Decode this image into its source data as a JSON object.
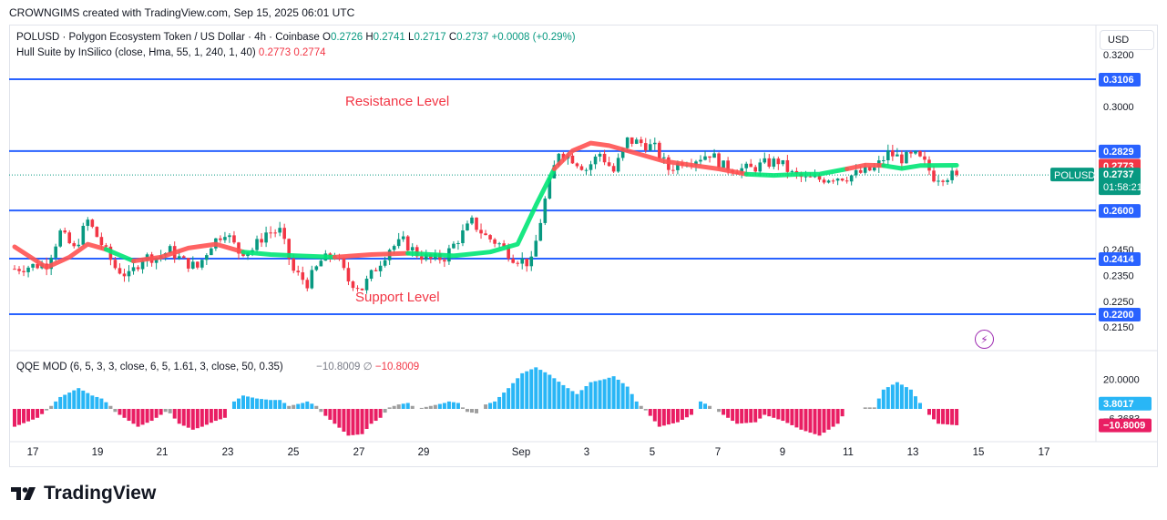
{
  "header": {
    "attribution": "CROWNGIMS created with TradingView.com, Sep 15, 2025 06:01 UTC"
  },
  "legend": {
    "symbol": "POLUSD · Polygon Ecosystem Token / US Dollar · 4h · Coinbase",
    "o_label": "O",
    "o_value": "0.2726",
    "h_label": "H",
    "h_value": "0.2741",
    "l_label": "L",
    "l_value": "0.2717",
    "c_label": "C",
    "c_value": "0.2737",
    "change": "+0.0008 (+0.29%)",
    "indicator": "Hull Suite by InSilico (close, Hma, 55, 1, 240, 1, 40)",
    "ind_v1": "0.2773",
    "ind_v2": "0.2774",
    "qqe_label": "QQE MOD (6, 5, 3, 3, close, 6, 5, 1.61, 3, close, 50, 0.35)",
    "qqe_v1": "−10.8009",
    "qqe_sym": "∅",
    "qqe_v2": "−10.8009"
  },
  "currency": "USD",
  "brand": "TradingView",
  "colors": {
    "up": "#089981",
    "down": "#f23645",
    "level_line": "#2962ff",
    "hull_up": "#00e676",
    "hull_down": "#ff5252",
    "qqe_up": "#29b6f6",
    "qqe_down": "#e91e63",
    "qqe_neutral": "#9e9e9e"
  },
  "chart_data": {
    "type": "candlestick",
    "symbol": "POLUSD",
    "timeframe": "4h",
    "price_axis_ticks": [
      "0.3200",
      "0.3000",
      "0.2450",
      "0.2350",
      "0.2250",
      "0.2150"
    ],
    "x_axis_ticks": [
      "17",
      "19",
      "21",
      "23",
      "25",
      "27",
      "29",
      "Sep",
      "3",
      "5",
      "7",
      "9",
      "11",
      "13",
      "15",
      "17"
    ],
    "annotations": [
      {
        "text": "Resistance Level",
        "color": "#f23645"
      },
      {
        "text": "Support Level",
        "color": "#f23645"
      }
    ],
    "levels": [
      0.3106,
      0.2829,
      0.26,
      0.2414,
      0.22
    ],
    "price_labels": [
      {
        "text": "0.3106",
        "color": "#2962ff",
        "value": 0.3106
      },
      {
        "text": "0.2829",
        "color": "#2962ff",
        "value": 0.2829
      },
      {
        "text": "0.2774",
        "color": "#f23645",
        "value": 0.2774
      },
      {
        "text": "0.2773",
        "color": "#f23645",
        "value": 0.2773
      },
      {
        "text": "0.2737",
        "color": "#089981",
        "value": 0.2737,
        "sub": "01:58:21",
        "tag": "POLUSD"
      },
      {
        "text": "0.2600",
        "color": "#2962ff",
        "value": 0.26
      },
      {
        "text": "0.2414",
        "color": "#2962ff",
        "value": 0.2414
      },
      {
        "text": "0.2200",
        "color": "#2962ff",
        "value": 0.22
      }
    ],
    "last_price": 0.2737,
    "countdown": "01:58:21",
    "candle_path": [
      [
        0,
        0.2375
      ],
      [
        7,
        0.2395
      ],
      [
        10,
        0.2515
      ],
      [
        13,
        0.245
      ],
      [
        16,
        0.256
      ],
      [
        19,
        0.247
      ],
      [
        22,
        0.238
      ],
      [
        25,
        0.2345
      ],
      [
        28,
        0.242
      ],
      [
        31,
        0.242
      ],
      [
        34,
        0.2445
      ],
      [
        37,
        0.2402
      ],
      [
        40,
        0.238
      ],
      [
        43,
        0.247
      ],
      [
        46,
        0.252
      ],
      [
        49,
        0.244
      ],
      [
        52,
        0.245
      ],
      [
        55,
        0.2515
      ],
      [
        58,
        0.252
      ],
      [
        61,
        0.2365
      ],
      [
        64,
        0.232
      ],
      [
        67,
        0.2405
      ],
      [
        70,
        0.243
      ],
      [
        73,
        0.233
      ],
      [
        76,
        0.23
      ],
      [
        79,
        0.2378
      ],
      [
        82,
        0.2455
      ],
      [
        85,
        0.248
      ],
      [
        88,
        0.2433
      ],
      [
        91,
        0.241
      ],
      [
        94,
        0.242
      ],
      [
        97,
        0.249
      ],
      [
        100,
        0.2555
      ],
      [
        103,
        0.25
      ],
      [
        106,
        0.247
      ],
      [
        109,
        0.242
      ],
      [
        112,
        0.24
      ],
      [
        113,
        0.24
      ],
      [
        116,
        0.264
      ],
      [
        119,
        0.283
      ],
      [
        122,
        0.28
      ],
      [
        125,
        0.276
      ],
      [
        128,
        0.282
      ],
      [
        131,
        0.275
      ],
      [
        134,
        0.287
      ],
      [
        137,
        0.286
      ],
      [
        140,
        0.284
      ],
      [
        143,
        0.276
      ],
      [
        146,
        0.279
      ],
      [
        149,
        0.28
      ],
      [
        152,
        0.282
      ],
      [
        155,
        0.277
      ],
      [
        158,
        0.276
      ],
      [
        161,
        0.276
      ],
      [
        164,
        0.278
      ],
      [
        167,
        0.279
      ],
      [
        170,
        0.274
      ],
      [
        173,
        0.272
      ],
      [
        176,
        0.272
      ],
      [
        179,
        0.273
      ],
      [
        182,
        0.273
      ],
      [
        185,
        0.2745
      ],
      [
        188,
        0.276
      ],
      [
        191,
        0.282
      ],
      [
        194,
        0.28
      ],
      [
        197,
        0.281
      ],
      [
        199,
        0.278
      ],
      [
        201,
        0.273
      ],
      [
        203,
        0.2732
      ],
      [
        206,
        0.2737
      ]
    ],
    "hull": {
      "points": [
        [
          0,
          0.246
        ],
        [
          7,
          0.238
        ],
        [
          12,
          0.242
        ],
        [
          16,
          0.247
        ],
        [
          20,
          0.245
        ],
        [
          26,
          0.2405
        ],
        [
          32,
          0.242
        ],
        [
          38,
          0.2455
        ],
        [
          44,
          0.247
        ],
        [
          50,
          0.244
        ],
        [
          56,
          0.243
        ],
        [
          62,
          0.2425
        ],
        [
          70,
          0.242
        ],
        [
          78,
          0.243
        ],
        [
          86,
          0.2435
        ],
        [
          96,
          0.2425
        ],
        [
          104,
          0.244
        ],
        [
          110,
          0.247
        ],
        [
          114,
          0.262
        ],
        [
          118,
          0.276
        ],
        [
          122,
          0.283
        ],
        [
          126,
          0.286
        ],
        [
          130,
          0.285
        ],
        [
          136,
          0.282
        ],
        [
          142,
          0.279
        ],
        [
          148,
          0.2775
        ],
        [
          154,
          0.276
        ],
        [
          160,
          0.274
        ],
        [
          166,
          0.2735
        ],
        [
          172,
          0.274
        ],
        [
          176,
          0.274
        ],
        [
          182,
          0.276
        ],
        [
          186,
          0.2775
        ],
        [
          190,
          0.2773
        ],
        [
          194,
          0.2762
        ],
        [
          198,
          0.2773
        ],
        [
          206,
          0.2774
        ]
      ],
      "segments": [
        {
          "from": 0,
          "to": 4,
          "dir": "down"
        },
        {
          "from": 4,
          "to": 5,
          "dir": "up"
        },
        {
          "from": 5,
          "to": 9,
          "dir": "down"
        },
        {
          "from": 9,
          "to": 12,
          "dir": "up"
        },
        {
          "from": 12,
          "to": 14,
          "dir": "down"
        },
        {
          "from": 14,
          "to": 19,
          "dir": "up"
        },
        {
          "from": 19,
          "to": 27,
          "dir": "down"
        },
        {
          "from": 27,
          "to": 31,
          "dir": "up"
        },
        {
          "from": 31,
          "to": 33,
          "dir": "down"
        },
        {
          "from": 33,
          "to": 36,
          "dir": "up"
        }
      ]
    },
    "qqe": {
      "axis_ticks": [
        "20.0000",
        "3.8017",
        "−6.3683",
        "−10.8009"
      ],
      "axis_values": [
        20.0,
        3.8017,
        -6.3683,
        -10.8009
      ],
      "tick_label_colors": [
        "#131722",
        "#29b6f6",
        "#131722",
        "#e91e63"
      ],
      "points": [
        [
          0,
          -12
        ],
        [
          5,
          -6
        ],
        [
          7,
          -1
        ],
        [
          10,
          8
        ],
        [
          14,
          14
        ],
        [
          17,
          9
        ],
        [
          19,
          7
        ],
        [
          21,
          2
        ],
        [
          22,
          -2
        ],
        [
          24,
          -6
        ],
        [
          27,
          -12
        ],
        [
          30,
          -8
        ],
        [
          33,
          -2
        ],
        [
          34,
          -3
        ],
        [
          36,
          -10
        ],
        [
          39,
          -14
        ],
        [
          41,
          -12
        ],
        [
          44,
          -8
        ],
        [
          46,
          -6
        ],
        [
          48,
          5
        ],
        [
          50,
          9
        ],
        [
          53,
          7
        ],
        [
          56,
          6
        ],
        [
          58,
          6
        ],
        [
          60,
          2
        ],
        [
          63,
          4
        ],
        [
          64,
          5
        ],
        [
          66,
          2
        ],
        [
          67,
          -2
        ],
        [
          70,
          -10
        ],
        [
          73,
          -18
        ],
        [
          76,
          -17
        ],
        [
          78,
          -10
        ],
        [
          80,
          -6
        ],
        [
          82,
          1
        ],
        [
          84,
          3
        ],
        [
          86,
          4
        ],
        [
          88,
          0
        ],
        [
          91,
          2
        ],
        [
          94,
          4
        ],
        [
          95,
          5
        ],
        [
          97,
          4
        ],
        [
          98,
          1
        ],
        [
          99,
          -2
        ],
        [
          101,
          -3
        ],
        [
          103,
          3
        ],
        [
          105,
          5
        ],
        [
          108,
          14
        ],
        [
          111,
          24
        ],
        [
          114,
          28
        ],
        [
          117,
          23
        ],
        [
          120,
          16
        ],
        [
          123,
          10
        ],
        [
          126,
          18
        ],
        [
          129,
          20
        ],
        [
          131,
          22
        ],
        [
          134,
          15
        ],
        [
          136,
          5
        ],
        [
          138,
          -1
        ],
        [
          141,
          -12
        ],
        [
          145,
          -9
        ],
        [
          148,
          -4
        ],
        [
          150,
          5
        ],
        [
          152,
          2
        ],
        [
          158,
          -10
        ],
        [
          162,
          -9
        ],
        [
          164,
          -4
        ],
        [
          168,
          -8
        ],
        [
          172,
          -14
        ],
        [
          176,
          -18
        ],
        [
          180,
          -10
        ],
        [
          182,
          0
        ],
        [
          184,
          0
        ],
        [
          186,
          1
        ],
        [
          188,
          1
        ],
        [
          190,
          13
        ],
        [
          193,
          18
        ],
        [
          196,
          13
        ],
        [
          198,
          4
        ],
        [
          200,
          -4
        ],
        [
          202,
          -10
        ],
        [
          206,
          -11
        ]
      ]
    }
  }
}
